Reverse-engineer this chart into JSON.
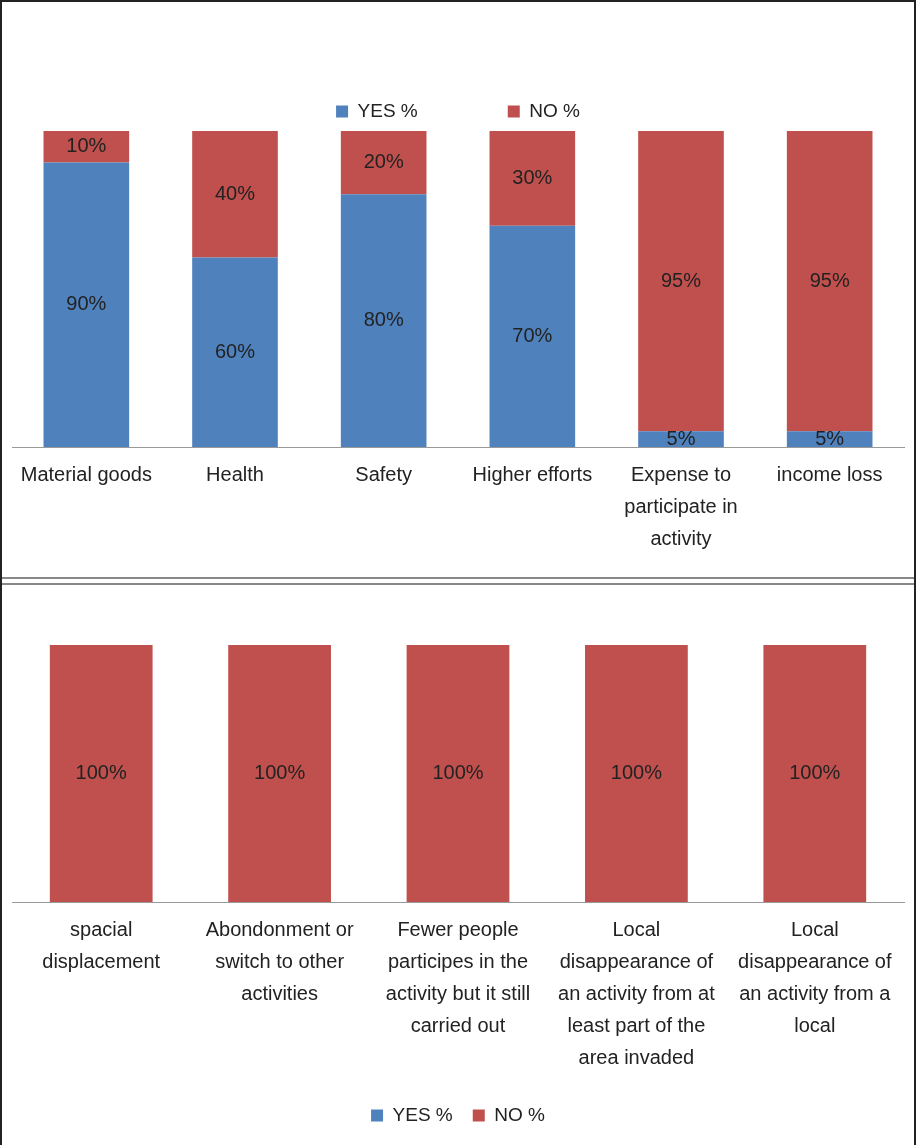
{
  "chart_data": [
    {
      "type": "bar",
      "stacked": true,
      "legend": "top",
      "grid": false,
      "tick_labels": "x",
      "categories": [
        "Material goods",
        "Health",
        "Safety",
        "Higher efforts",
        "Expense to participate in activity",
        "income loss"
      ],
      "series": [
        {
          "name": "YES %",
          "color": "#4f81bd",
          "values": [
            90,
            60,
            80,
            70,
            5,
            5
          ],
          "value_labels": [
            "90%",
            "60%",
            "80%",
            "70%",
            "5%",
            "5%"
          ]
        },
        {
          "name": "NO %",
          "color": "#c0504d",
          "values": [
            10,
            40,
            20,
            30,
            95,
            95
          ],
          "value_labels": [
            "10%",
            "40%",
            "20%",
            "30%",
            "95%",
            "95%"
          ]
        }
      ]
    },
    {
      "type": "bar",
      "stacked": true,
      "legend": "bottom",
      "grid": false,
      "tick_labels": "x",
      "categories": [
        "spacial displacement",
        "Abondonment or switch to other activities",
        "Fewer people participes in the activity but it still carried out",
        "Local disappearance of an activity from at least part of the area invaded",
        "Local disappearance of an activity from a local"
      ],
      "series": [
        {
          "name": "YES %",
          "color": "#4f81bd",
          "values": [
            null,
            null,
            null,
            null,
            null
          ],
          "value_labels": [
            null,
            null,
            null,
            null,
            null
          ]
        },
        {
          "name": "NO %",
          "color": "#c0504d",
          "values": [
            100,
            100,
            100,
            100,
            100
          ],
          "value_labels": [
            "100%",
            "100%",
            "100%",
            "100%",
            "100%"
          ]
        }
      ]
    }
  ]
}
